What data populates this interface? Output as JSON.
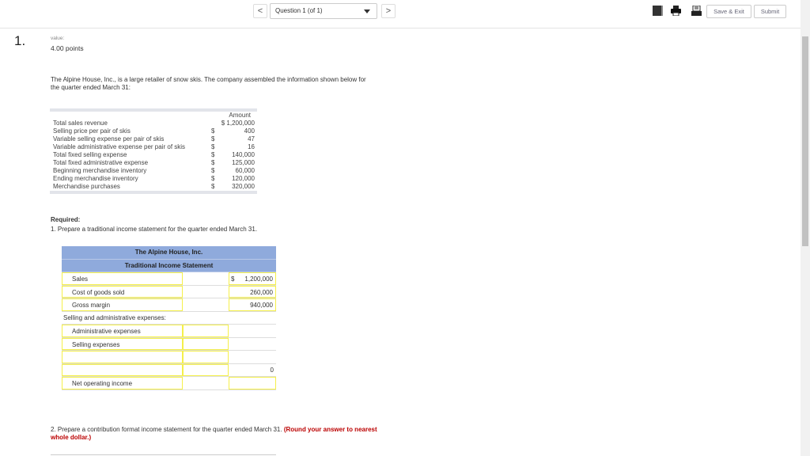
{
  "header": {
    "question_select": "Question 1 (of 1)",
    "save_exit": "Save & Exit",
    "submit": "Submit",
    "prev": "<",
    "next": ">"
  },
  "question": {
    "number": "1.",
    "value_label": "value:",
    "points": "4.00 points",
    "intro": "The Alpine House, Inc., is a large retailer of snow skis. The company assembled the information shown below for the quarter ended March 31:",
    "given_header": "Amount",
    "given": [
      {
        "label": "Total sales revenue",
        "cur": "",
        "value": "$ 1,200,000"
      },
      {
        "label": "Selling price per pair of skis",
        "cur": "$",
        "value": "400"
      },
      {
        "label": "Variable selling expense per pair of skis",
        "cur": "$",
        "value": "47"
      },
      {
        "label": "Variable administrative expense per pair of skis",
        "cur": "$",
        "value": "16"
      },
      {
        "label": "Total fixed selling expense",
        "cur": "$",
        "value": "140,000"
      },
      {
        "label": "Total fixed administrative expense",
        "cur": "$",
        "value": "125,000"
      },
      {
        "label": "Beginning merchandise inventory",
        "cur": "$",
        "value": "60,000"
      },
      {
        "label": "Ending merchandise inventory",
        "cur": "$",
        "value": "120,000"
      },
      {
        "label": "Merchandise purchases",
        "cur": "$",
        "value": "320,000"
      }
    ],
    "required": "Required:",
    "req1": "1.  Prepare a traditional income statement for the quarter ended March 31.",
    "req2": "2.  Prepare a contribution format income statement for the quarter ended March 31.",
    "req2_bold": "(Round your answer to nearest whole dollar.)"
  },
  "statement": {
    "company": "The Alpine House, Inc.",
    "title": "Traditional Income Statement",
    "rows": [
      {
        "label": "Sales",
        "mid": "",
        "cur": "$",
        "right": "1,200,000"
      },
      {
        "label": "Cost of goods sold",
        "mid": "",
        "cur": "",
        "right": "260,000"
      },
      {
        "label": "Gross margin",
        "mid": "",
        "cur": "",
        "right": "940,000"
      },
      {
        "label": "Selling and administrative expenses:",
        "mid": "",
        "cur": "",
        "right": ""
      },
      {
        "label": "Administrative expenses",
        "mid": "",
        "cur": "",
        "right": ""
      },
      {
        "label": "Selling expenses",
        "mid": "",
        "cur": "",
        "right": ""
      },
      {
        "label": "",
        "mid": "",
        "cur": "",
        "right": ""
      },
      {
        "label": "",
        "mid": "",
        "cur": "",
        "right": "0"
      },
      {
        "label": "Net operating income",
        "mid": "",
        "cur": "",
        "right": ""
      }
    ]
  }
}
